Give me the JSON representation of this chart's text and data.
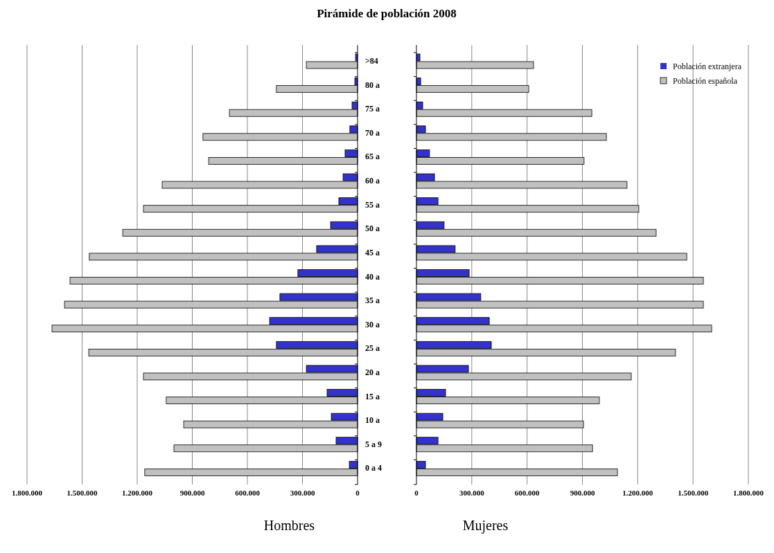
{
  "chart_data": [
    {
      "type": "bar",
      "orientation": "horizontal",
      "title": "Pirámide de población 2008",
      "xlabel": "Hombres",
      "grid": "x",
      "categories": [
        ">84",
        "80 a",
        "75 a",
        "70 a",
        "65 a",
        "60 a",
        "55 a",
        "50 a",
        "45 a",
        "40 a",
        "35 a",
        "30 a",
        "25 a",
        "20 a",
        "15 a",
        "10 a",
        "5 a 9",
        "0 a 4"
      ],
      "xlim": [
        1800000,
        0
      ],
      "xticks": [
        {
          "value": 1800000,
          "label": "1.800.000"
        },
        {
          "value": 1500000,
          "label": "1.500.000"
        },
        {
          "value": 1200000,
          "label": "1.200.000"
        },
        {
          "value": 900000,
          "label": "900.000"
        },
        {
          "value": 600000,
          "label": "600.000"
        },
        {
          "value": 300000,
          "label": "300.000"
        },
        0
      ],
      "series": [
        {
          "color": "#3333cc",
          "values": [
            11000,
            15000,
            30000,
            42000,
            68000,
            79000,
            102000,
            147000,
            223000,
            325000,
            423000,
            479000,
            442000,
            279000,
            166000,
            143000,
            117000,
            45000
          ]
        },
        {
          "color": "#c0c0c0",
          "values": [
            279000,
            442000,
            698000,
            842000,
            811000,
            1064000,
            1166000,
            1279000,
            1461000,
            1566000,
            1596000,
            1664000,
            1464000,
            1166000,
            1042000,
            947000,
            1000000,
            1159000
          ]
        }
      ]
    },
    {
      "type": "bar",
      "orientation": "horizontal",
      "xlabel": "Mujeres",
      "grid": "x",
      "legend": "top right",
      "tick_labels": "x",
      "categories": [
        null,
        null,
        null,
        null,
        null,
        null,
        null,
        null,
        null,
        null,
        null,
        null,
        null,
        null,
        null,
        null,
        null,
        null
      ],
      "xlim": [
        0,
        1800000
      ],
      "xticks": [
        0,
        {
          "value": 300000,
          "label": "300.000"
        },
        {
          "value": 600000,
          "label": "600.000"
        },
        {
          "value": 900000,
          "label": "900.000"
        },
        {
          "value": 1200000,
          "label": "1.200.000"
        },
        {
          "value": 1500000,
          "label": "1.500.000"
        },
        {
          "value": 1800000,
          "label": "1.800.000"
        }
      ],
      "series": [
        {
          "name": "Población extranjera",
          "color": "#3333cc",
          "values": [
            19000,
            23000,
            34000,
            49000,
            71000,
            98000,
            117000,
            150000,
            210000,
            286000,
            349000,
            395000,
            406000,
            282000,
            158000,
            143000,
            117000,
            49000
          ]
        },
        {
          "name": "Población española",
          "color": "#c0c0c0",
          "values": [
            635000,
            609000,
            951000,
            1030000,
            909000,
            1142000,
            1206000,
            1300000,
            1466000,
            1556000,
            1556000,
            1601000,
            1405000,
            1165000,
            992000,
            906000,
            955000,
            1090000
          ]
        }
      ]
    }
  ]
}
